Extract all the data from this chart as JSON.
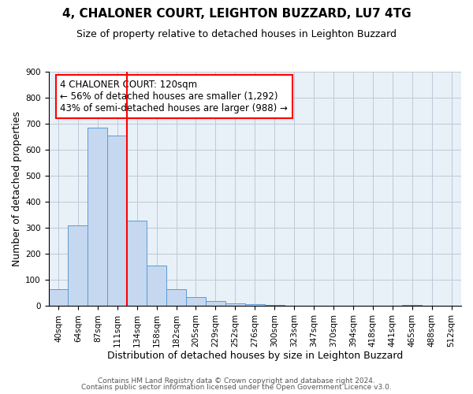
{
  "title": "4, CHALONER COURT, LEIGHTON BUZZARD, LU7 4TG",
  "subtitle": "Size of property relative to detached houses in Leighton Buzzard",
  "xlabel": "Distribution of detached houses by size in Leighton Buzzard",
  "ylabel": "Number of detached properties",
  "footer_line1": "Contains HM Land Registry data © Crown copyright and database right 2024.",
  "footer_line2": "Contains public sector information licensed under the Open Government Licence v3.0.",
  "bin_labels": [
    "40sqm",
    "64sqm",
    "87sqm",
    "111sqm",
    "134sqm",
    "158sqm",
    "182sqm",
    "205sqm",
    "229sqm",
    "252sqm",
    "276sqm",
    "300sqm",
    "323sqm",
    "347sqm",
    "370sqm",
    "394sqm",
    "418sqm",
    "441sqm",
    "465sqm",
    "488sqm",
    "512sqm"
  ],
  "bar_values": [
    65,
    310,
    685,
    655,
    330,
    155,
    65,
    35,
    20,
    10,
    8,
    5,
    0,
    0,
    0,
    0,
    0,
    0,
    5,
    0,
    0
  ],
  "bar_color": "#c5d8f0",
  "bar_edgecolor": "#5b9bd5",
  "grid_color": "#c0c8d8",
  "background_color": "#e8f0f8",
  "annotation_title": "4 CHALONER COURT: 120sqm",
  "annotation_line1": "← 56% of detached houses are smaller (1,292)",
  "annotation_line2": "43% of semi-detached houses are larger (988) →",
  "ylim": [
    0,
    900
  ],
  "yticks": [
    0,
    100,
    200,
    300,
    400,
    500,
    600,
    700,
    800,
    900
  ],
  "title_fontsize": 11,
  "subtitle_fontsize": 9,
  "axis_label_fontsize": 9,
  "tick_fontsize": 7.5,
  "annotation_fontsize": 8.5,
  "footer_fontsize": 6.5
}
